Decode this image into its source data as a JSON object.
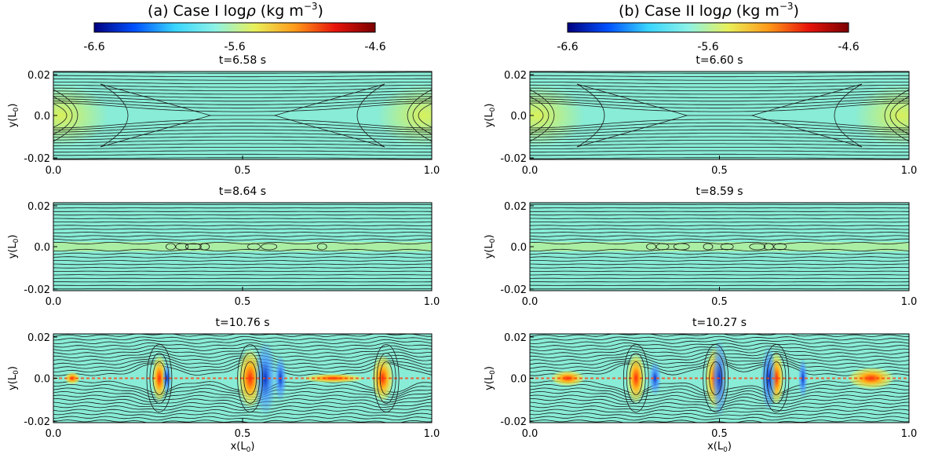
{
  "figure": {
    "colorbar_ticks": [
      "-6.6",
      "-5.6",
      "-4.6"
    ],
    "colorbar_stops": [
      "#00007f",
      "#0050ff",
      "#38d4ff",
      "#8cf2e6",
      "#e8f05a",
      "#ff9a1a",
      "#e8140a",
      "#7a0000"
    ],
    "field_color": "#88ecd6",
    "field_color_strong": "#b9ef8f",
    "xticks": [
      "0.0",
      "0.5",
      "1.0"
    ],
    "yticks": [
      "0.02",
      "0.0",
      "-0.02"
    ],
    "ylabel": "y(L",
    "ylabel_sub": "0",
    "xlabel": "x(L",
    "xlabel_sub": "0",
    "panels": {
      "a": {
        "title_prefix": "(a) Case I log",
        "rho_symbol": "ρ",
        "title_units": " (kg m",
        "title_exp": "−3",
        "title_close": ")",
        "times": [
          "t=6.58 s",
          "t=8.64 s",
          "t=10.76 s"
        ]
      },
      "b": {
        "title_prefix": "(b) Case II log",
        "rho_symbol": "ρ",
        "title_units": " (kg m",
        "title_exp": "−3",
        "title_close": ")",
        "times": [
          "t=6.60 s",
          "t=8.59 s",
          "t=10.27 s"
        ]
      }
    }
  }
}
